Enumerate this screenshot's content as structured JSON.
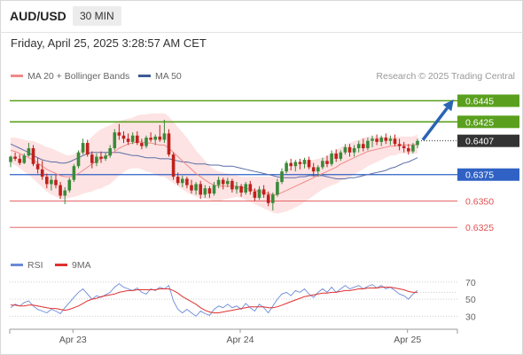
{
  "header": {
    "symbol": "AUD/USD",
    "timeframe": "30 MIN",
    "timestamp": "Friday, April 25, 2025 3:28:57 AM CET"
  },
  "legend": {
    "ma20_label": "MA 20 + Bollinger Bands",
    "ma50_label": "MA 50",
    "credit": "Research © 2025 Trading Central",
    "rsi_label": "RSI",
    "rsi_ma_label": "9MA"
  },
  "colors": {
    "bull": "#3a8a3a",
    "bear": "#c0211c",
    "ma20": "#f08a8a",
    "ma50": "#5a6ea8",
    "band_fill": "#fde0e0",
    "resistance": "#5aa01e",
    "support_blue": "#2f62c4",
    "support_red": "#e05050",
    "current": "#333333",
    "arrow": "#2a64b4",
    "rsi": "#6a8ad8",
    "rsi_ma": "#e03030"
  },
  "chart_data": [
    {
      "type": "candlestick",
      "x_labels": [
        "Apr 23",
        "Apr 24",
        "Apr 25"
      ],
      "ylim": [
        0.631,
        0.6453
      ],
      "current_price": "0.6407",
      "levels": [
        {
          "value": 0.6445,
          "label": "0.6445",
          "style": "resistance",
          "tag": "box"
        },
        {
          "value": 0.6425,
          "label": "0.6425",
          "style": "resistance",
          "tag": "box"
        },
        {
          "value": 0.6375,
          "label": "0.6375",
          "style": "support_blue",
          "tag": "box"
        },
        {
          "value": 0.635,
          "label": "0.6350",
          "style": "support_red",
          "tag": "text"
        },
        {
          "value": 0.6325,
          "label": "0.6325",
          "style": "support_red",
          "tag": "text"
        }
      ],
      "forecast_arrow": {
        "from": 0.6407,
        "to": 0.6445
      },
      "x_ticks": [
        {
          "label": "Apr 23",
          "bar": 13
        },
        {
          "label": "Apr 24",
          "bar": 50
        },
        {
          "label": "Apr 25",
          "bar": 87
        }
      ],
      "ohlc": [
        [
          0.6387,
          0.6393,
          0.6382,
          0.6392
        ],
        [
          0.6392,
          0.6396,
          0.6388,
          0.639
        ],
        [
          0.639,
          0.6394,
          0.6384,
          0.6386
        ],
        [
          0.6386,
          0.6395,
          0.6385,
          0.6393
        ],
        [
          0.6393,
          0.6405,
          0.6392,
          0.64
        ],
        [
          0.64,
          0.6403,
          0.6383,
          0.6385
        ],
        [
          0.6385,
          0.6391,
          0.6376,
          0.638
        ],
        [
          0.638,
          0.6388,
          0.637,
          0.6373
        ],
        [
          0.6373,
          0.6376,
          0.6362,
          0.6366
        ],
        [
          0.6366,
          0.6374,
          0.636,
          0.637
        ],
        [
          0.637,
          0.6375,
          0.6362,
          0.6365
        ],
        [
          0.6365,
          0.6368,
          0.6352,
          0.6355
        ],
        [
          0.6355,
          0.6363,
          0.6347,
          0.636
        ],
        [
          0.636,
          0.6372,
          0.6358,
          0.637
        ],
        [
          0.637,
          0.6385,
          0.6368,
          0.6383
        ],
        [
          0.6383,
          0.6398,
          0.6381,
          0.6396
        ],
        [
          0.6396,
          0.6409,
          0.6394,
          0.6405
        ],
        [
          0.6405,
          0.6408,
          0.6392,
          0.6394
        ],
        [
          0.6394,
          0.6397,
          0.6381,
          0.6386
        ],
        [
          0.6386,
          0.6395,
          0.6383,
          0.6392
        ],
        [
          0.6392,
          0.6397,
          0.6386,
          0.639
        ],
        [
          0.639,
          0.6396,
          0.6388,
          0.6393
        ],
        [
          0.6393,
          0.6403,
          0.6391,
          0.64
        ],
        [
          0.64,
          0.6418,
          0.6398,
          0.6415
        ],
        [
          0.6415,
          0.6423,
          0.6408,
          0.6412
        ],
        [
          0.6412,
          0.6416,
          0.6405,
          0.6409
        ],
        [
          0.6409,
          0.6414,
          0.6403,
          0.6406
        ],
        [
          0.6406,
          0.6415,
          0.6404,
          0.6412
        ],
        [
          0.6412,
          0.6416,
          0.6403,
          0.6405
        ],
        [
          0.6405,
          0.6409,
          0.6399,
          0.6402
        ],
        [
          0.6402,
          0.6412,
          0.64,
          0.641
        ],
        [
          0.641,
          0.6415,
          0.6406,
          0.6408
        ],
        [
          0.6408,
          0.6413,
          0.6403,
          0.6411
        ],
        [
          0.6411,
          0.6422,
          0.6406,
          0.6408
        ],
        [
          0.6408,
          0.6427,
          0.6405,
          0.6414
        ],
        [
          0.6414,
          0.6418,
          0.6392,
          0.6394
        ],
        [
          0.6394,
          0.6396,
          0.637,
          0.6373
        ],
        [
          0.6373,
          0.6377,
          0.6365,
          0.6367
        ],
        [
          0.6367,
          0.6374,
          0.6363,
          0.6371
        ],
        [
          0.6371,
          0.6373,
          0.6362,
          0.6365
        ],
        [
          0.6365,
          0.637,
          0.6357,
          0.636
        ],
        [
          0.636,
          0.6368,
          0.6356,
          0.6366
        ],
        [
          0.6366,
          0.6369,
          0.6352,
          0.6356
        ],
        [
          0.6356,
          0.6365,
          0.6353,
          0.6362
        ],
        [
          0.6362,
          0.6364,
          0.6353,
          0.6357
        ],
        [
          0.6357,
          0.6368,
          0.6355,
          0.6365
        ],
        [
          0.6365,
          0.6373,
          0.6362,
          0.637
        ],
        [
          0.637,
          0.6372,
          0.6361,
          0.6366
        ],
        [
          0.6366,
          0.6372,
          0.6363,
          0.6369
        ],
        [
          0.6369,
          0.6371,
          0.6358,
          0.6361
        ],
        [
          0.6361,
          0.6368,
          0.6357,
          0.6364
        ],
        [
          0.6364,
          0.6366,
          0.6354,
          0.6358
        ],
        [
          0.6358,
          0.6368,
          0.6356,
          0.6366
        ],
        [
          0.6366,
          0.6369,
          0.6356,
          0.6359
        ],
        [
          0.6359,
          0.6362,
          0.635,
          0.6353
        ],
        [
          0.6353,
          0.6364,
          0.6351,
          0.6361
        ],
        [
          0.6361,
          0.6365,
          0.6353,
          0.6356
        ],
        [
          0.6356,
          0.6359,
          0.6345,
          0.6348
        ],
        [
          0.6348,
          0.6358,
          0.6341,
          0.6356
        ],
        [
          0.6356,
          0.6371,
          0.6354,
          0.6368
        ],
        [
          0.6368,
          0.6381,
          0.6366,
          0.6378
        ],
        [
          0.6378,
          0.6388,
          0.6376,
          0.6386
        ],
        [
          0.6386,
          0.639,
          0.6379,
          0.6383
        ],
        [
          0.6383,
          0.6389,
          0.6378,
          0.6387
        ],
        [
          0.6387,
          0.639,
          0.638,
          0.6385
        ],
        [
          0.6385,
          0.6391,
          0.6381,
          0.6389
        ],
        [
          0.6389,
          0.6392,
          0.638,
          0.6382
        ],
        [
          0.6382,
          0.6386,
          0.6373,
          0.6378
        ],
        [
          0.6378,
          0.6384,
          0.6373,
          0.6382
        ],
        [
          0.6382,
          0.6391,
          0.638,
          0.6388
        ],
        [
          0.6388,
          0.6393,
          0.6382,
          0.6385
        ],
        [
          0.6385,
          0.6398,
          0.6383,
          0.6395
        ],
        [
          0.6395,
          0.6399,
          0.6387,
          0.639
        ],
        [
          0.639,
          0.6398,
          0.6388,
          0.6396
        ],
        [
          0.6396,
          0.6404,
          0.6394,
          0.6401
        ],
        [
          0.6401,
          0.6404,
          0.6392,
          0.6396
        ],
        [
          0.6396,
          0.6403,
          0.6392,
          0.64
        ],
        [
          0.64,
          0.6407,
          0.6396,
          0.6404
        ],
        [
          0.6404,
          0.6409,
          0.6397,
          0.64
        ],
        [
          0.64,
          0.641,
          0.6398,
          0.6407
        ],
        [
          0.6407,
          0.6412,
          0.6401,
          0.6409
        ],
        [
          0.6409,
          0.6413,
          0.6403,
          0.6406
        ],
        [
          0.6406,
          0.6412,
          0.6402,
          0.641
        ],
        [
          0.641,
          0.6414,
          0.6404,
          0.6407
        ],
        [
          0.6407,
          0.6412,
          0.6403,
          0.6409
        ],
        [
          0.6409,
          0.6413,
          0.6402,
          0.6404
        ],
        [
          0.6404,
          0.6409,
          0.6398,
          0.6402
        ],
        [
          0.6402,
          0.6406,
          0.6396,
          0.64
        ],
        [
          0.64,
          0.6404,
          0.6394,
          0.6397
        ],
        [
          0.6397,
          0.6405,
          0.6395,
          0.6403
        ],
        [
          0.6403,
          0.6409,
          0.64,
          0.6407
        ]
      ],
      "ma50": [
        0.6404,
        0.6402,
        0.64,
        0.6398,
        0.6396,
        0.6393,
        0.6391,
        0.6389,
        0.6388,
        0.6387,
        0.6387,
        0.6386,
        0.6386,
        0.6387,
        0.6389,
        0.6391,
        0.6393,
        0.6395,
        0.6396,
        0.6396,
        0.6396,
        0.6396,
        0.6396,
        0.6396,
        0.6396,
        0.6395,
        0.6394,
        0.6393,
        0.6393,
        0.6392,
        0.6391,
        0.6391,
        0.6391,
        0.639,
        0.639,
        0.639,
        0.6389,
        0.6388,
        0.6387,
        0.6387,
        0.6386,
        0.6385,
        0.6385,
        0.6385,
        0.6384,
        0.6384,
        0.6384,
        0.6383,
        0.6383,
        0.6383,
        0.6382,
        0.6381,
        0.638,
        0.6379,
        0.6378,
        0.6377,
        0.6376,
        0.6375,
        0.6374,
        0.6373,
        0.6372,
        0.6372,
        0.6372,
        0.6372,
        0.6373,
        0.6373,
        0.6374,
        0.6374,
        0.6374,
        0.6374,
        0.6373,
        0.6372,
        0.6371,
        0.6371,
        0.6371,
        0.6372,
        0.6372,
        0.6373,
        0.6374,
        0.6375,
        0.6376,
        0.6377,
        0.6378,
        0.6379,
        0.6381,
        0.6382,
        0.6384,
        0.6386,
        0.6387,
        0.6389,
        0.6391
      ],
      "ma20": [
        0.6398,
        0.6397,
        0.6395,
        0.6393,
        0.6391,
        0.6389,
        0.6386,
        0.6383,
        0.638,
        0.6378,
        0.6376,
        0.6374,
        0.6373,
        0.6373,
        0.6374,
        0.6376,
        0.6379,
        0.6382,
        0.6385,
        0.6388,
        0.639,
        0.6392,
        0.6394,
        0.6397,
        0.64,
        0.6402,
        0.6404,
        0.6405,
        0.6406,
        0.6406,
        0.6405,
        0.6405,
        0.6404,
        0.6403,
        0.6403,
        0.64,
        0.6396,
        0.6392,
        0.6388,
        0.6384,
        0.638,
        0.6376,
        0.6373,
        0.637,
        0.6367,
        0.6365,
        0.6364,
        0.6364,
        0.6364,
        0.6364,
        0.6364,
        0.6363,
        0.6362,
        0.6361,
        0.636,
        0.6359,
        0.6358,
        0.6357,
        0.6356,
        0.6356,
        0.6358,
        0.636,
        0.6362,
        0.6364,
        0.6366,
        0.6368,
        0.637,
        0.6372,
        0.6374,
        0.6376,
        0.6378,
        0.638,
        0.6382,
        0.6385,
        0.6387,
        0.6389,
        0.6391,
        0.6393,
        0.6395,
        0.6397,
        0.6398,
        0.6399,
        0.64,
        0.6401,
        0.6402,
        0.6402,
        0.6403,
        0.6403,
        0.6403,
        0.6403,
        0.6404
      ],
      "bb_width": [
        0.0012,
        0.0013,
        0.0014,
        0.0015,
        0.0016,
        0.0018,
        0.0019,
        0.002,
        0.0021,
        0.0022,
        0.0022,
        0.0022,
        0.0021,
        0.002,
        0.002,
        0.0021,
        0.0022,
        0.0024,
        0.0026,
        0.0027,
        0.0028,
        0.0028,
        0.0028,
        0.0027,
        0.0026,
        0.0025,
        0.0024,
        0.0024,
        0.0025,
        0.0026,
        0.0027,
        0.0028,
        0.0029,
        0.003,
        0.003,
        0.003,
        0.0029,
        0.0028,
        0.0027,
        0.0026,
        0.0024,
        0.0022,
        0.002,
        0.0018,
        0.0016,
        0.0015,
        0.0014,
        0.0013,
        0.0012,
        0.0011,
        0.001,
        0.001,
        0.0011,
        0.0012,
        0.0013,
        0.0014,
        0.0015,
        0.0016,
        0.0017,
        0.0018,
        0.0019,
        0.002,
        0.002,
        0.002,
        0.002,
        0.0019,
        0.0018,
        0.0017,
        0.0016,
        0.0015,
        0.0015,
        0.0015,
        0.0016,
        0.0016,
        0.0016,
        0.0016,
        0.0016,
        0.0015,
        0.0015,
        0.0014,
        0.0013,
        0.0012,
        0.0011,
        0.001,
        0.0009,
        0.0009,
        0.0008,
        0.0008,
        0.0008,
        0.0008,
        0.0009
      ]
    },
    {
      "type": "line",
      "title": "RSI",
      "ylim": [
        22,
        75
      ],
      "y_ticks": [
        70,
        50,
        30
      ],
      "reference_lines": [
        70,
        50,
        30
      ],
      "series": [
        {
          "name": "RSI",
          "values": [
            40,
            44,
            42,
            46,
            48,
            42,
            38,
            36,
            34,
            38,
            36,
            33,
            40,
            46,
            52,
            58,
            62,
            56,
            50,
            54,
            52,
            55,
            58,
            64,
            68,
            64,
            62,
            60,
            63,
            58,
            56,
            62,
            60,
            64,
            62,
            66,
            48,
            38,
            34,
            38,
            34,
            30,
            36,
            33,
            31,
            38,
            42,
            40,
            44,
            40,
            42,
            38,
            45,
            40,
            36,
            44,
            40,
            34,
            42,
            50,
            56,
            58,
            54,
            60,
            58,
            62,
            56,
            52,
            58,
            62,
            58,
            64,
            58,
            62,
            66,
            62,
            64,
            66,
            62,
            65,
            67,
            63,
            66,
            62,
            64,
            60,
            56,
            54,
            50,
            56,
            60
          ]
        },
        {
          "name": "9MA",
          "values": [
            43,
            43,
            42,
            42,
            43,
            43,
            42,
            41,
            40,
            39,
            39,
            38,
            37,
            38,
            40,
            42,
            45,
            48,
            50,
            51,
            53,
            54,
            55,
            56,
            58,
            59,
            60,
            60,
            61,
            61,
            61,
            61,
            61,
            62,
            62,
            62,
            60,
            57,
            53,
            50,
            47,
            44,
            40,
            37,
            35,
            34,
            34,
            35,
            36,
            37,
            38,
            39,
            40,
            41,
            41,
            41,
            41,
            40,
            40,
            41,
            43,
            45,
            47,
            49,
            51,
            53,
            54,
            55,
            56,
            57,
            57,
            58,
            58,
            59,
            60,
            60,
            61,
            62,
            62,
            63,
            63,
            63,
            64,
            64,
            64,
            63,
            62,
            61,
            59,
            58,
            58
          ]
        }
      ]
    }
  ]
}
